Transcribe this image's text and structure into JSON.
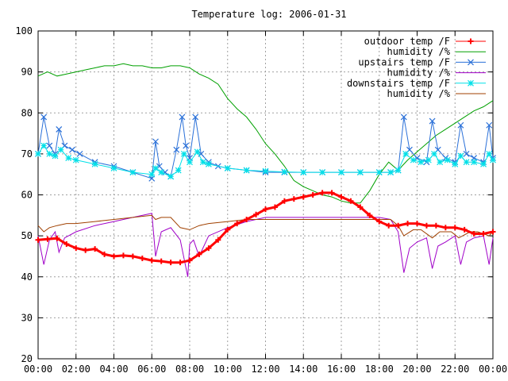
{
  "chart_data": {
    "type": "line",
    "title": "Temperature log: 2006-01-31",
    "xlabel": "",
    "ylabel": "",
    "xlim": [
      0,
      24
    ],
    "ylim": [
      20,
      100
    ],
    "grid": true,
    "legend_position": "top-right",
    "x_ticks": [
      "00:00",
      "02:00",
      "04:00",
      "06:00",
      "08:00",
      "10:00",
      "12:00",
      "14:00",
      "16:00",
      "18:00",
      "20:00",
      "22:00",
      "00:00"
    ],
    "y_ticks": [
      "20",
      "30",
      "40",
      "50",
      "60",
      "70",
      "80",
      "90",
      "100"
    ],
    "series": [
      {
        "name": "outdoor temp /F",
        "color": "#ff0000",
        "marker": "plus",
        "x": [
          0,
          0.5,
          1,
          1.5,
          2,
          2.5,
          3,
          3.5,
          4,
          4.5,
          5,
          5.5,
          6,
          6.5,
          7,
          7.5,
          8,
          8.5,
          9,
          9.5,
          10,
          10.5,
          11,
          11.5,
          12,
          12.5,
          13,
          13.5,
          14,
          14.5,
          15,
          15.5,
          16,
          16.5,
          17,
          17.5,
          18,
          18.5,
          19,
          19.5,
          20,
          20.5,
          21,
          21.5,
          22,
          22.5,
          23,
          23.5,
          24
        ],
        "y": [
          49,
          49.2,
          49.4,
          48,
          47,
          46.5,
          46.8,
          45.5,
          45,
          45.2,
          45,
          44.5,
          44,
          43.8,
          43.5,
          43.5,
          44,
          45.5,
          47,
          49,
          51.5,
          53,
          54,
          55.2,
          56.5,
          57,
          58.5,
          59,
          59.5,
          60,
          60.5,
          60.5,
          59.5,
          58.5,
          57,
          55,
          53.5,
          52.5,
          52.5,
          53,
          53,
          52.5,
          52.5,
          52,
          52,
          51.5,
          50.5,
          50.5,
          51
        ]
      },
      {
        "name": "humidity /%",
        "color": "#00a000",
        "marker": "none",
        "x": [
          0,
          0.5,
          1,
          1.5,
          2,
          2.5,
          3,
          3.5,
          4,
          4.5,
          5,
          5.5,
          6,
          6.5,
          7,
          7.5,
          8,
          8.5,
          9,
          9.5,
          10,
          10.5,
          11,
          11.5,
          12,
          12.5,
          13,
          13.5,
          14,
          14.5,
          15,
          15.5,
          16,
          16.5,
          17,
          17.5,
          18,
          18.5,
          19,
          19.5,
          20,
          20.5,
          21,
          21.5,
          22,
          22.5,
          23,
          23.5,
          24
        ],
        "y": [
          89,
          90,
          89,
          89.5,
          90,
          90.5,
          91,
          91.5,
          91.5,
          92,
          91.5,
          91.5,
          91,
          91,
          91.5,
          91.5,
          91,
          89.5,
          88.5,
          87,
          83.5,
          81,
          79,
          76,
          72.5,
          70,
          67,
          63.5,
          62,
          61,
          60,
          59.5,
          58.5,
          58,
          58,
          61,
          65,
          68,
          66,
          68.5,
          70.5,
          72.5,
          74.5,
          76,
          77.5,
          79,
          80.5,
          81.5,
          83
        ]
      },
      {
        "name": "upstairs temp /F",
        "color": "#2a70d8",
        "marker": "x",
        "x": [
          0,
          0.3,
          0.6,
          0.9,
          1.1,
          1.4,
          1.8,
          2.2,
          3,
          4,
          5,
          6,
          6.2,
          6.4,
          6.7,
          7,
          7.3,
          7.6,
          7.8,
          8,
          8.3,
          8.6,
          9,
          9.5,
          10,
          11,
          12,
          13,
          14,
          15,
          16,
          17,
          18,
          18.6,
          19,
          19.3,
          19.6,
          20,
          20.5,
          20.8,
          21.1,
          21.5,
          22,
          22.3,
          22.6,
          23,
          23.5,
          23.8,
          24
        ],
        "y": [
          70,
          79,
          72,
          70,
          76,
          72,
          71,
          70,
          68,
          67,
          65.5,
          64,
          73,
          67,
          65.5,
          64.5,
          71,
          79,
          72,
          69,
          79,
          70,
          68,
          67,
          66.5,
          66,
          65.5,
          65.5,
          65.5,
          65.5,
          65.5,
          65.5,
          65.5,
          65.5,
          66,
          79,
          71,
          69,
          68,
          78,
          71,
          69,
          68,
          77,
          70,
          69,
          68,
          77,
          69
        ]
      },
      {
        "name": "humidity /%",
        "color": "#a000c8",
        "marker": "none",
        "x": [
          0,
          0.3,
          0.6,
          0.9,
          1.1,
          1.4,
          2,
          3,
          4,
          5,
          6,
          6.2,
          6.5,
          7,
          7.5,
          7.9,
          8,
          8.2,
          8.5,
          9,
          10,
          11,
          12,
          13,
          14,
          15,
          16,
          17,
          18,
          18.6,
          19,
          19.3,
          19.6,
          20,
          20.5,
          20.8,
          21.1,
          21.5,
          22,
          22.3,
          22.6,
          23,
          23.5,
          23.8,
          24
        ],
        "y": [
          50,
          43,
          49,
          51,
          46,
          49.5,
          51,
          52.5,
          53.5,
          54.5,
          55.5,
          45,
          51,
          52,
          49,
          40,
          48,
          49,
          45,
          50,
          52,
          53.5,
          54.5,
          54.5,
          54.5,
          54.5,
          54.5,
          54.5,
          54.5,
          54,
          51,
          41,
          47,
          48.5,
          49.5,
          42,
          47.5,
          48.5,
          50,
          43,
          48.5,
          49.5,
          50,
          43,
          49.5
        ]
      },
      {
        "name": "downstairs temp /F",
        "color": "#00e0e8",
        "marker": "star",
        "x": [
          0,
          0.3,
          0.6,
          0.9,
          1.2,
          1.6,
          2,
          3,
          4,
          5,
          6,
          6.2,
          6.5,
          7,
          7.4,
          7.7,
          8,
          8.4,
          8.7,
          9,
          10,
          11,
          12,
          13,
          14,
          15,
          16,
          17,
          18,
          18.6,
          19,
          19.4,
          19.8,
          20.2,
          20.6,
          20.9,
          21.2,
          21.6,
          22,
          22.3,
          22.6,
          23,
          23.5,
          23.8,
          24
        ],
        "y": [
          70,
          72,
          70,
          69.5,
          71,
          69,
          68.5,
          67.5,
          66.5,
          65.5,
          65,
          66.5,
          65.5,
          64.5,
          66,
          70,
          68,
          70.5,
          68,
          67.5,
          66.5,
          66,
          65.8,
          65.6,
          65.5,
          65.5,
          65.5,
          65.5,
          65.5,
          65.5,
          66,
          70,
          68.5,
          68,
          68.5,
          70,
          68,
          68.5,
          67.5,
          69.5,
          68,
          68,
          67.5,
          70,
          68.5
        ]
      },
      {
        "name": "humidity /%",
        "color": "#a04000",
        "marker": "none",
        "x": [
          0,
          0.3,
          0.6,
          1,
          1.5,
          2,
          3,
          4,
          5,
          6,
          6.2,
          6.5,
          7,
          7.5,
          8,
          8.5,
          9,
          10,
          11,
          12,
          13,
          14,
          15,
          16,
          17,
          18,
          18.6,
          19,
          19.3,
          19.8,
          20.2,
          20.8,
          21.2,
          21.8,
          22.2,
          22.8,
          23.2,
          23.8,
          24
        ],
        "y": [
          52.5,
          51,
          52,
          52.5,
          53,
          53,
          53.5,
          54,
          54.5,
          55,
          54,
          54.5,
          54.5,
          52,
          51.5,
          52.5,
          53,
          53.5,
          54,
          54,
          54,
          54,
          54,
          54,
          54,
          54,
          54,
          52.5,
          50,
          51.5,
          51.5,
          49.5,
          51,
          51,
          49.5,
          51,
          51,
          50,
          51
        ]
      }
    ]
  }
}
